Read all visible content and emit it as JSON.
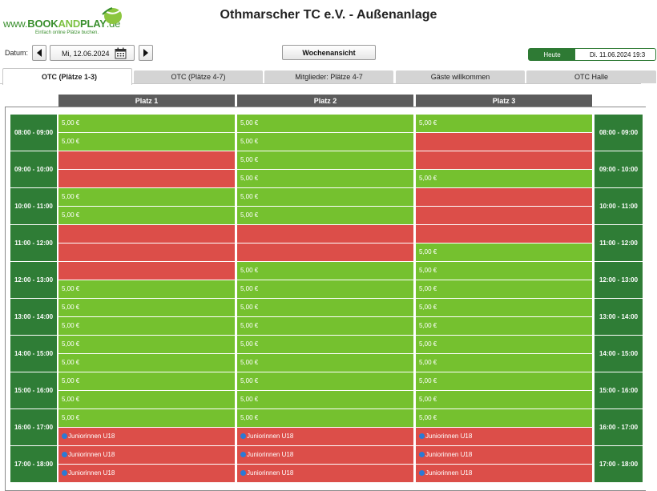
{
  "header": {
    "logo": {
      "www": "www.",
      "book": "BOOK",
      "and": "AND",
      "play": "PLAY",
      "de": ".de",
      "tagline": "Einfach online Plätze buchen."
    },
    "title": "Othmarscher TC e.V. - Außenanlage"
  },
  "datebar": {
    "label": "Datum:",
    "date": "Mi, 12.06.2024",
    "week_button": "Wochenansicht",
    "today_button": "Heute",
    "today_date": "Di. 11.06.2024 19:3"
  },
  "tabs": [
    {
      "label": "OTC (Plätze 1-3)",
      "active": true
    },
    {
      "label": "OTC (Plätze 4-7)"
    },
    {
      "label": "Mitglieder: Plätze 4-7"
    },
    {
      "label": "Gäste willkommen"
    },
    {
      "label": "OTC Halle"
    }
  ],
  "courts": [
    "Platz 1",
    "Platz 2",
    "Platz 3"
  ],
  "times": [
    "08:00 - 09:00",
    "09:00 - 10:00",
    "10:00 - 11:00",
    "11:00 - 12:00",
    "12:00 - 13:00",
    "13:00 - 14:00",
    "14:00 - 15:00",
    "15:00 - 16:00",
    "16:00 - 17:00",
    "17:00 - 18:00"
  ],
  "colors": {
    "free": "#75c12f",
    "booked": "#dc4e49",
    "time": "#2f7d36",
    "court_header": "#5c5c5c",
    "event_dot": "#2a7ad6"
  },
  "slots": [
    [
      {
        "status": "free",
        "text": "5,00 €"
      },
      {
        "status": "free",
        "text": "5,00 €"
      },
      {
        "status": "booked",
        "text": ""
      },
      {
        "status": "booked",
        "text": ""
      },
      {
        "status": "free",
        "text": "5,00 €"
      },
      {
        "status": "free",
        "text": "5,00 €"
      },
      {
        "status": "booked",
        "text": ""
      },
      {
        "status": "booked",
        "text": ""
      },
      {
        "status": "booked",
        "text": ""
      },
      {
        "status": "free",
        "text": "5,00 €"
      },
      {
        "status": "free",
        "text": "5,00 €"
      },
      {
        "status": "free",
        "text": "5,00 €"
      },
      {
        "status": "free",
        "text": "5,00 €"
      },
      {
        "status": "free",
        "text": "5,00 €"
      },
      {
        "status": "free",
        "text": "5,00 €"
      },
      {
        "status": "free",
        "text": "5,00 €"
      },
      {
        "status": "free",
        "text": "5,00 €"
      },
      {
        "status": "booked",
        "text": "Juniorinnen U18",
        "event": true
      },
      {
        "status": "booked",
        "text": "Juniorinnen U18",
        "event": true
      },
      {
        "status": "booked",
        "text": "Juniorinnen U18",
        "event": true
      }
    ],
    [
      {
        "status": "free",
        "text": "5,00 €"
      },
      {
        "status": "free",
        "text": "5,00 €"
      },
      {
        "status": "free",
        "text": "5,00 €"
      },
      {
        "status": "free",
        "text": "5,00 €"
      },
      {
        "status": "free",
        "text": "5,00 €"
      },
      {
        "status": "free",
        "text": "5,00 €"
      },
      {
        "status": "booked",
        "text": ""
      },
      {
        "status": "booked",
        "text": ""
      },
      {
        "status": "free",
        "text": "5,00 €"
      },
      {
        "status": "free",
        "text": "5,00 €"
      },
      {
        "status": "free",
        "text": "5,00 €"
      },
      {
        "status": "free",
        "text": "5,00 €"
      },
      {
        "status": "free",
        "text": "5,00 €"
      },
      {
        "status": "free",
        "text": "5,00 €"
      },
      {
        "status": "free",
        "text": "5,00 €"
      },
      {
        "status": "free",
        "text": "5,00 €"
      },
      {
        "status": "free",
        "text": "5,00 €"
      },
      {
        "status": "booked",
        "text": "Juniorinnen U18",
        "event": true
      },
      {
        "status": "booked",
        "text": "Juniorinnen U18",
        "event": true
      },
      {
        "status": "booked",
        "text": "Juniorinnen U18",
        "event": true
      }
    ],
    [
      {
        "status": "free",
        "text": "5,00 €"
      },
      {
        "status": "booked",
        "text": ""
      },
      {
        "status": "booked",
        "text": ""
      },
      {
        "status": "free",
        "text": "5,00 €"
      },
      {
        "status": "booked",
        "text": ""
      },
      {
        "status": "booked",
        "text": ""
      },
      {
        "status": "booked",
        "text": ""
      },
      {
        "status": "free",
        "text": "5,00 €"
      },
      {
        "status": "free",
        "text": "5,00 €"
      },
      {
        "status": "free",
        "text": "5,00 €"
      },
      {
        "status": "free",
        "text": "5,00 €"
      },
      {
        "status": "free",
        "text": "5,00 €"
      },
      {
        "status": "free",
        "text": "5,00 €"
      },
      {
        "status": "free",
        "text": "5,00 €"
      },
      {
        "status": "free",
        "text": "5,00 €"
      },
      {
        "status": "free",
        "text": "5,00 €"
      },
      {
        "status": "free",
        "text": "5,00 €"
      },
      {
        "status": "booked",
        "text": "Juniorinnen U18",
        "event": true
      },
      {
        "status": "booked",
        "text": "Juniorinnen U18",
        "event": true
      },
      {
        "status": "booked",
        "text": "Juniorinnen U18",
        "event": true
      }
    ]
  ]
}
